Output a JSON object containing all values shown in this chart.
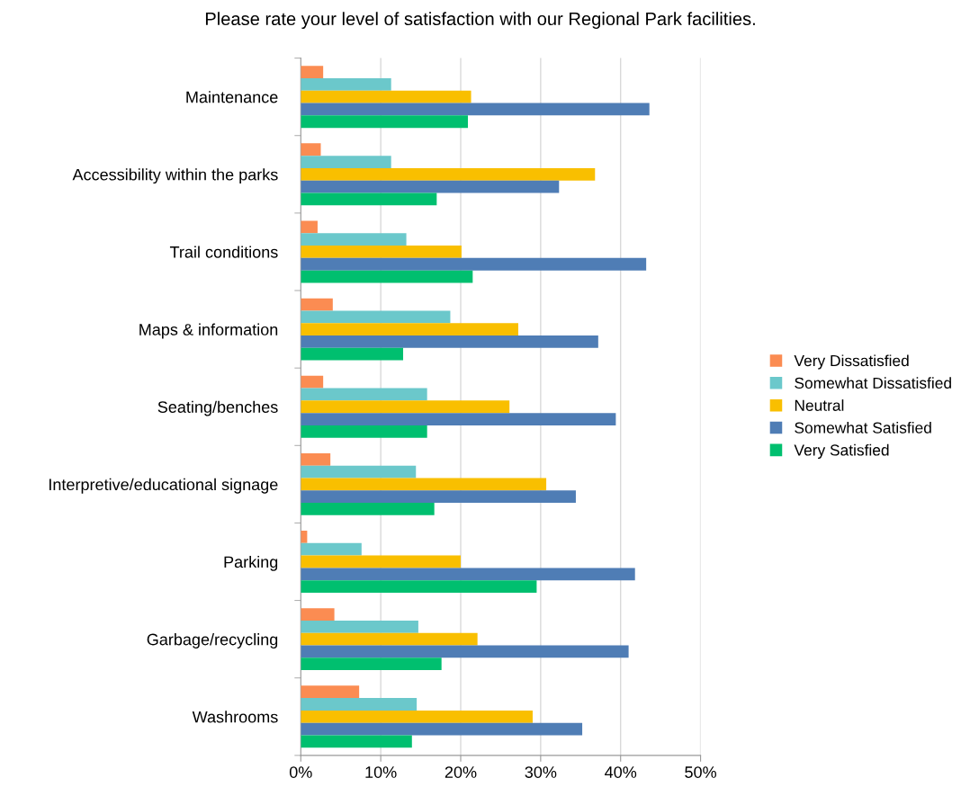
{
  "chart_data": {
    "type": "bar",
    "orientation": "horizontal",
    "title": "Please rate your level of satisfaction with our Regional Park facilities.",
    "categories": [
      "Maintenance",
      "Accessibility within the parks",
      "Trail conditions",
      "Maps & information",
      "Seating/benches",
      "Interpretive/educational signage",
      "Parking",
      "Garbage/recycling",
      "Washrooms"
    ],
    "series": [
      {
        "name": "Very Dissatisfied",
        "color": "#fb8c52",
        "values": [
          2.8,
          2.5,
          2.1,
          4.0,
          2.8,
          3.7,
          0.8,
          4.2,
          7.3
        ]
      },
      {
        "name": "Somewhat Dissatisfied",
        "color": "#6bc8cb",
        "values": [
          11.3,
          11.3,
          13.2,
          18.7,
          15.8,
          14.4,
          7.6,
          14.7,
          14.5
        ]
      },
      {
        "name": "Neutral",
        "color": "#f9bf00",
        "values": [
          21.3,
          36.8,
          20.1,
          27.2,
          26.1,
          30.7,
          20.0,
          22.1,
          29.0
        ]
      },
      {
        "name": "Somewhat Satisfied",
        "color": "#4f7db5",
        "values": [
          43.6,
          32.3,
          43.2,
          37.2,
          39.4,
          34.4,
          41.8,
          41.0,
          35.2
        ]
      },
      {
        "name": "Very Satisfied",
        "color": "#00bf6f",
        "values": [
          20.9,
          17.0,
          21.5,
          12.8,
          15.8,
          16.7,
          29.5,
          17.6,
          13.9
        ]
      }
    ],
    "xlim": [
      0,
      50
    ],
    "xticks": [
      {
        "value": 0,
        "label": "0%"
      },
      {
        "value": 10,
        "label": "10%"
      },
      {
        "value": 20,
        "label": "20%"
      },
      {
        "value": 30,
        "label": "30%"
      },
      {
        "value": 40,
        "label": "40%"
      },
      {
        "value": 50,
        "label": "50%"
      }
    ],
    "grid": "x",
    "legend": "right"
  }
}
